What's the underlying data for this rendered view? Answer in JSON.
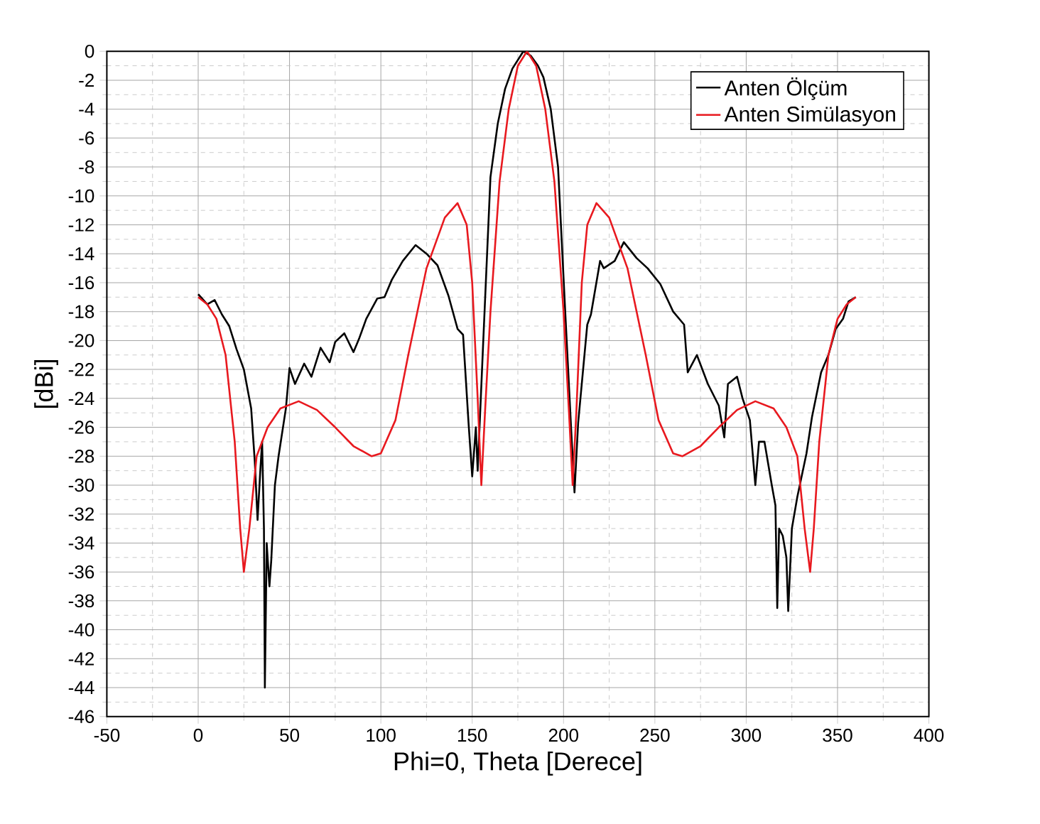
{
  "chart_data": {
    "type": "line",
    "xlabel": "Phi=0, Theta [Derece]",
    "ylabel": "[dBi]",
    "xlim": [
      -50,
      400
    ],
    "xticks": [
      -50,
      0,
      50,
      100,
      150,
      200,
      250,
      300,
      350,
      400
    ],
    "ylim": [
      -46,
      0
    ],
    "yticks": [
      -46,
      -44,
      -42,
      -40,
      -38,
      -36,
      -34,
      -32,
      -30,
      -28,
      -26,
      -24,
      -22,
      -20,
      -18,
      -16,
      -14,
      -12,
      -10,
      -8,
      -6,
      -4,
      -2,
      0
    ],
    "grid": true,
    "legend": "top right",
    "marker": "none",
    "line_style": "solid",
    "series": [
      {
        "name": "Anten Ölçüm",
        "color": "#000000",
        "x": [
          0,
          1.5,
          5,
          9,
          13,
          17,
          21,
          25,
          29,
          31,
          32.5,
          34,
          35,
          36,
          36.5,
          37.5,
          39,
          40,
          42,
          44,
          48,
          50,
          53,
          58,
          62,
          67,
          72,
          75,
          80,
          85,
          88,
          92,
          98,
          102,
          106,
          112,
          119,
          125,
          131,
          137,
          142,
          145,
          148,
          150,
          152,
          153,
          156,
          160,
          164,
          168,
          172,
          178,
          182,
          186,
          189,
          193,
          197,
          201,
          204,
          206,
          208,
          213,
          215,
          220,
          222,
          228,
          233,
          240,
          246,
          253,
          260,
          266,
          268,
          273,
          279,
          285,
          288,
          290,
          295,
          298,
          302,
          305,
          307,
          310,
          314,
          316,
          317,
          318,
          320,
          322,
          323,
          325,
          328,
          333,
          336,
          341,
          345,
          349,
          353,
          356,
          360
        ],
        "values": [
          -16.8,
          -17.0,
          -17.5,
          -17.2,
          -18.2,
          -19.0,
          -20.6,
          -22.0,
          -24.7,
          -28.4,
          -32.4,
          -29.0,
          -27.0,
          -33.0,
          -44.0,
          -34.0,
          -37.0,
          -35.2,
          -30.0,
          -28.0,
          -24.7,
          -21.9,
          -23.0,
          -21.6,
          -22.5,
          -20.5,
          -21.5,
          -20.1,
          -19.5,
          -20.8,
          -19.9,
          -18.5,
          -17.1,
          -17.0,
          -15.8,
          -14.5,
          -13.4,
          -14.0,
          -14.8,
          -16.9,
          -19.2,
          -19.6,
          -25.7,
          -29.4,
          -26.0,
          -29.0,
          -20.2,
          -8.7,
          -5.0,
          -2.6,
          -1.2,
          0.0,
          -0.3,
          -1.0,
          -1.8,
          -4.0,
          -8.0,
          -18.2,
          -25.7,
          -30.5,
          -25.7,
          -18.9,
          -18.2,
          -14.5,
          -15.0,
          -14.5,
          -13.2,
          -14.3,
          -15.0,
          -16.1,
          -18.0,
          -18.9,
          -22.2,
          -21.0,
          -23.0,
          -24.5,
          -26.7,
          -23.0,
          -22.5,
          -24.0,
          -25.5,
          -30.0,
          -27.0,
          -27.0,
          -30.0,
          -31.4,
          -38.5,
          -33.0,
          -33.5,
          -35.0,
          -38.7,
          -33.0,
          -30.8,
          -27.8,
          -25.3,
          -22.2,
          -21.0,
          -19.2,
          -18.5,
          -17.3,
          -17.0
        ]
      },
      {
        "name": "Anten Simülasyon",
        "color": "#e8191f",
        "x": [
          0,
          5,
          10,
          15,
          20,
          23,
          25,
          28,
          32,
          38,
          45,
          55,
          65,
          75,
          85,
          95,
          100,
          108,
          115,
          125,
          135,
          142,
          147,
          150,
          153,
          155,
          157,
          160,
          165,
          170,
          175,
          180,
          185,
          190,
          195,
          200,
          203,
          205,
          207,
          210,
          213,
          218,
          225,
          235,
          245,
          252,
          260,
          265,
          275,
          285,
          295,
          305,
          315,
          322,
          328,
          332,
          335,
          337,
          340,
          345,
          350,
          355,
          360
        ],
        "values": [
          -17.0,
          -17.5,
          -18.5,
          -21.0,
          -27.0,
          -33.0,
          -36.0,
          -33.0,
          -28.0,
          -26.0,
          -24.7,
          -24.2,
          -24.8,
          -26.0,
          -27.3,
          -28.0,
          -27.8,
          -25.5,
          -21.0,
          -15.0,
          -11.5,
          -10.5,
          -12.0,
          -16.0,
          -24.0,
          -30.0,
          -25.0,
          -18.0,
          -9.0,
          -4.0,
          -1.0,
          0.0,
          -1.0,
          -4.0,
          -9.0,
          -18.0,
          -25.0,
          -30.0,
          -25.0,
          -16.0,
          -12.0,
          -10.5,
          -11.5,
          -15.0,
          -21.0,
          -25.5,
          -27.8,
          -28.0,
          -27.3,
          -26.0,
          -24.8,
          -24.2,
          -24.7,
          -26.0,
          -28.0,
          -33.0,
          -36.0,
          -33.0,
          -27.0,
          -21.0,
          -18.5,
          -17.5,
          -17.0
        ]
      }
    ]
  }
}
